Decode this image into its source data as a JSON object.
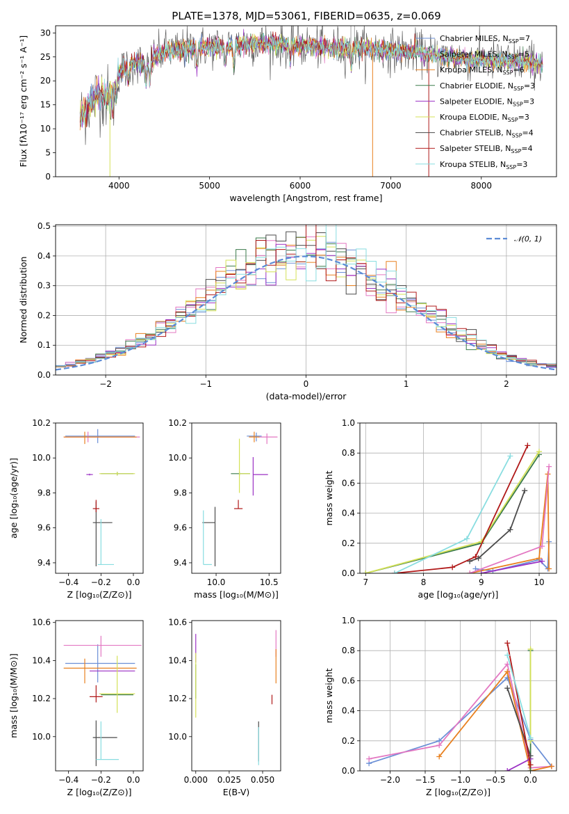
{
  "title": "PLATE=1378, MJD=53061, FIBERID=0635, z=0.069",
  "colors": {
    "Chabrier MILES": "#6b8fd6",
    "Salpeter MILES": "#e377c2",
    "Kroupa MILES": "#e8801f",
    "Chabrier ELODIE": "#3a7a4a",
    "Salpeter ELODIE": "#9b30c4",
    "Kroupa ELODIE": "#d4e157",
    "Chabrier STELIB": "#4a4a4a",
    "Salpeter STELIB": "#b01818",
    "Kroupa STELIB": "#88dde0"
  },
  "chart_data": [
    {
      "id": "spectrum",
      "type": "line",
      "xlabel": "wavelength [Angstrom, rest frame]",
      "ylabel": "Flux [fλ10⁻¹⁷ erg cm⁻² s⁻¹ A⁻¹]",
      "xlim": [
        3300,
        8830
      ],
      "ylim": [
        0,
        31.5
      ],
      "xticks": [
        4000,
        5000,
        6000,
        7000,
        8000
      ],
      "yticks": [
        0,
        5,
        10,
        15,
        20,
        25,
        30
      ],
      "grid": false,
      "legend_position": "top-right",
      "legend": [
        "Chabrier MILES, N_SSP=7",
        "Salpeter MILES, N_SSP=5",
        "Kroupa MILES, N_SSP=6",
        "Chabrier ELODIE, N_SSP=3",
        "Salpeter ELODIE, N_SSP=3",
        "Kroupa ELODIE, N_SSP=3",
        "Chabrier STELIB, N_SSP=4",
        "Salpeter STELIB, N_SSP=4",
        "Kroupa STELIB, N_SSP=3"
      ],
      "continuum": {
        "x": [
          3550,
          3600,
          3700,
          3800,
          3900,
          3950,
          4000,
          4100,
          4200,
          4300,
          4400,
          4500,
          4700,
          4900,
          5100,
          5300,
          5500,
          5700,
          5900,
          6100,
          6300,
          6500,
          6700,
          6900,
          7100,
          7300,
          7500,
          7700,
          7900,
          8100,
          8300,
          8500,
          8700,
          8830
        ],
        "y": [
          12,
          13,
          16,
          17.5,
          16,
          19,
          22,
          23,
          24,
          23,
          25,
          26,
          26.5,
          27,
          27.2,
          27.5,
          27.8,
          27.8,
          27.5,
          27.2,
          27,
          26.8,
          26.8,
          26.5,
          26.2,
          26,
          25.2,
          24.8,
          24.5,
          24.2,
          24,
          24,
          23.5,
          23
        ]
      }
    },
    {
      "id": "residuals",
      "type": "line",
      "xlabel": "(data-model)/error",
      "ylabel": "Normed distribution",
      "xlim": [
        -2.5,
        2.5
      ],
      "ylim": [
        0,
        0.505
      ],
      "xticks": [
        -2,
        -1,
        0,
        1,
        2
      ],
      "yticks": [
        0.0,
        0.1,
        0.2,
        0.3,
        0.4,
        0.5
      ],
      "grid": true,
      "legend_position": "top-right",
      "legend": [
        "𝒩(0, 1)"
      ],
      "gaussian": {
        "mean": 0,
        "sigma": 1
      }
    },
    {
      "id": "age-vs-Z",
      "type": "scatter",
      "xlabel": "Z [log₁₀(Z/Z⊙)]",
      "ylabel": "age  [log₁₀(age/yr)]",
      "xlim": [
        -0.48,
        0.06
      ],
      "ylim": [
        9.34,
        10.2
      ],
      "xticks": [
        -0.4,
        -0.2,
        0.0
      ],
      "yticks": [
        9.4,
        9.6,
        9.8,
        10.0,
        10.2
      ],
      "points": [
        {
          "model": "Chabrier MILES",
          "x": -0.22,
          "y": 10.125,
          "xerr": [
            0.2,
            0.23
          ],
          "yerr": [
            0.04,
            0.04
          ]
        },
        {
          "model": "Salpeter MILES",
          "x": -0.28,
          "y": 10.12,
          "xerr": [
            0.15,
            0.32
          ],
          "yerr": [
            0.03,
            0.03
          ]
        },
        {
          "model": "Kroupa MILES",
          "x": -0.3,
          "y": 10.12,
          "xerr": [
            0.13,
            0.32
          ],
          "yerr": [
            0.04,
            0.03
          ]
        },
        {
          "model": "Chabrier ELODIE",
          "x": -0.1,
          "y": 9.91,
          "xerr": [
            0.1,
            0.1
          ],
          "yerr": [
            0.01,
            0.01
          ]
        },
        {
          "model": "Salpeter ELODIE",
          "x": -0.27,
          "y": 9.905,
          "xerr": [
            0.02,
            0.02
          ],
          "yerr": [
            0.005,
            0.005
          ]
        },
        {
          "model": "Kroupa ELODIE",
          "x": -0.1,
          "y": 9.91,
          "xerr": [
            0.11,
            0.11
          ],
          "yerr": [
            0.01,
            0.01
          ]
        },
        {
          "model": "Chabrier STELIB",
          "x": -0.23,
          "y": 9.63,
          "xerr": [
            0.02,
            0.1
          ],
          "yerr": [
            0.25,
            0.12
          ]
        },
        {
          "model": "Salpeter STELIB",
          "x": -0.23,
          "y": 9.71,
          "xerr": [
            0.02,
            0.02
          ],
          "yerr": [
            0.02,
            0.05
          ]
        },
        {
          "model": "Kroupa STELIB",
          "x": -0.2,
          "y": 9.39,
          "xerr": [
            0.02,
            0.08
          ],
          "yerr": [
            0.0,
            0.26
          ]
        }
      ]
    },
    {
      "id": "age-vs-mass",
      "type": "scatter",
      "xlabel": "mass [log₁₀(M/M⊙)]",
      "ylabel": "",
      "xlim": [
        9.77,
        10.61
      ],
      "ylim": [
        9.34,
        10.2
      ],
      "xticks": [
        10.0,
        10.5
      ],
      "yticks": [
        9.4,
        9.6,
        9.8,
        10.0,
        10.2
      ],
      "points": [
        {
          "model": "Chabrier MILES",
          "x": 10.38,
          "y": 10.125,
          "xerr": [
            0.09,
            0.05
          ],
          "yerr": [
            0.03,
            0.02
          ]
        },
        {
          "model": "Salpeter MILES",
          "x": 10.48,
          "y": 10.12,
          "xerr": [
            0.08,
            0.1
          ],
          "yerr": [
            0.04,
            0.02
          ]
        },
        {
          "model": "Kroupa MILES",
          "x": 10.36,
          "y": 10.12,
          "xerr": [
            0.05,
            0.05
          ],
          "yerr": [
            0.03,
            0.03
          ]
        },
        {
          "model": "Chabrier ELODIE",
          "x": 10.22,
          "y": 9.91,
          "xerr": [
            0.08,
            0.1
          ],
          "yerr": [
            0.01,
            0.01
          ]
        },
        {
          "model": "Salpeter ELODIE",
          "x": 10.35,
          "y": 9.905,
          "xerr": [
            0.0,
            0.14
          ],
          "yerr": [
            0.12,
            0.1
          ]
        },
        {
          "model": "Kroupa ELODIE",
          "x": 10.22,
          "y": 9.91,
          "xerr": [
            0.0,
            0.1
          ],
          "yerr": [
            0.11,
            0.2
          ]
        },
        {
          "model": "Chabrier STELIB",
          "x": 9.99,
          "y": 9.63,
          "xerr": [
            0.12,
            0.0
          ],
          "yerr": [
            0.25,
            0.09
          ]
        },
        {
          "model": "Salpeter STELIB",
          "x": 10.21,
          "y": 9.71,
          "xerr": [
            0.04,
            0.04
          ],
          "yerr": [
            0.0,
            0.05
          ]
        },
        {
          "model": "Kroupa STELIB",
          "x": 9.88,
          "y": 9.39,
          "xerr": [
            0.0,
            0.08
          ],
          "yerr": [
            0.0,
            0.31
          ]
        }
      ]
    },
    {
      "id": "weight-vs-age",
      "type": "line",
      "xlabel": "age  [log₁₀(age/yr)]",
      "ylabel": "mass weight",
      "xlim": [
        6.9,
        10.3
      ],
      "ylim": [
        0.0,
        1.0
      ],
      "xticks": [
        7,
        8,
        9,
        10
      ],
      "yticks": [
        0.0,
        0.2,
        0.4,
        0.6,
        0.8,
        1.0
      ],
      "grid": true,
      "series": [
        {
          "model": "Chabrier MILES",
          "x": [
            8.9,
            9.2,
            10.0,
            10.15,
            10.17
          ],
          "y": [
            0.03,
            0.015,
            0.09,
            0.03,
            0.21
          ]
        },
        {
          "model": "Kroupa MILES",
          "x": [
            8.8,
            10.0,
            10.15,
            10.17
          ],
          "y": [
            0.0,
            0.1,
            0.66,
            0.03
          ]
        },
        {
          "model": "Salpeter MILES",
          "x": [
            8.8,
            10.05,
            10.17
          ],
          "y": [
            0.0,
            0.18,
            0.71
          ]
        },
        {
          "model": "Chabrier ELODIE",
          "x": [
            7.0,
            9.0,
            10.0
          ],
          "y": [
            0.0,
            0.2,
            0.79
          ]
        },
        {
          "model": "Kroupa ELODIE",
          "x": [
            7.0,
            9.0,
            10.0
          ],
          "y": [
            0.0,
            0.21,
            0.81
          ]
        },
        {
          "model": "Salpeter ELODIE",
          "x": [
            9.0,
            10.05
          ],
          "y": [
            0.0,
            0.08
          ]
        },
        {
          "model": "Chabrier STELIB",
          "x": [
            8.8,
            8.95,
            9.5,
            9.75
          ],
          "y": [
            0.08,
            0.1,
            0.29,
            0.55
          ]
        },
        {
          "model": "Salpeter STELIB",
          "x": [
            7.5,
            8.5,
            8.9,
            9.8
          ],
          "y": [
            0.0,
            0.04,
            0.11,
            0.85
          ]
        },
        {
          "model": "Kroupa STELIB",
          "x": [
            7.5,
            8.75,
            9.5
          ],
          "y": [
            0.0,
            0.23,
            0.78
          ]
        }
      ]
    },
    {
      "id": "mass-vs-Z",
      "type": "scatter",
      "xlabel": "Z [log₁₀(Z/Z⊙)]",
      "ylabel": "mass [log₁₀(M/M⊙)]",
      "xlim": [
        -0.48,
        0.06
      ],
      "ylim": [
        9.82,
        10.61
      ],
      "xticks": [
        -0.4,
        -0.2,
        0.0
      ],
      "yticks": [
        10.0,
        10.2,
        10.4,
        10.6
      ],
      "points": [
        {
          "model": "Chabrier MILES",
          "x": -0.22,
          "y": 10.385,
          "xerr": [
            0.2,
            0.23
          ],
          "yerr": [
            0.1,
            0.1
          ]
        },
        {
          "model": "Salpeter MILES",
          "x": -0.2,
          "y": 10.48,
          "xerr": [
            0.23,
            0.25
          ],
          "yerr": [
            0.06,
            0.05
          ]
        },
        {
          "model": "Kroupa MILES",
          "x": -0.3,
          "y": 10.36,
          "xerr": [
            0.13,
            0.32
          ],
          "yerr": [
            0.08,
            0.05
          ]
        },
        {
          "model": "Chabrier ELODIE",
          "x": -0.1,
          "y": 10.22,
          "xerr": [
            0.1,
            0.1
          ],
          "yerr": [
            0.0,
            0.0
          ]
        },
        {
          "model": "Salpeter ELODIE",
          "x": -0.13,
          "y": 10.345,
          "xerr": [
            0.14,
            0.14
          ],
          "yerr": [
            0.0,
            0.0
          ]
        },
        {
          "model": "Kroupa ELODIE",
          "x": -0.1,
          "y": 10.225,
          "xerr": [
            0.11,
            0.11
          ],
          "yerr": [
            0.1,
            0.2
          ]
        },
        {
          "model": "Chabrier STELIB",
          "x": -0.23,
          "y": 9.995,
          "xerr": [
            0.02,
            0.13
          ],
          "yerr": [
            0.15,
            0.09
          ]
        },
        {
          "model": "Salpeter STELIB",
          "x": -0.23,
          "y": 10.21,
          "xerr": [
            0.04,
            0.04
          ],
          "yerr": [
            0.03,
            0.06
          ]
        },
        {
          "model": "Kroupa STELIB",
          "x": -0.2,
          "y": 9.88,
          "xerr": [
            0.03,
            0.11
          ],
          "yerr": [
            0.0,
            0.2
          ]
        }
      ]
    },
    {
      "id": "mass-vs-EBV",
      "type": "scatter",
      "xlabel": "E(B-V)",
      "ylabel": "",
      "xlim": [
        -0.003,
        0.0635
      ],
      "ylim": [
        9.82,
        10.61
      ],
      "xticks": [
        0.0,
        0.025,
        0.05
      ],
      "yticks": [
        10.0,
        10.2,
        10.4,
        10.6
      ],
      "points": [
        {
          "model": "Chabrier ELODIE",
          "x": 0.0,
          "y": 10.3,
          "xerr": [
            0,
            0
          ],
          "yerr": [
            0.1,
            0.08
          ]
        },
        {
          "model": "Salpeter ELODIE",
          "x": 0.0,
          "y": 10.45,
          "xerr": [
            0,
            0
          ],
          "yerr": [
            0.06,
            0.09
          ]
        },
        {
          "model": "Kroupa ELODIE",
          "x": 0.0,
          "y": 10.3,
          "xerr": [
            0,
            0
          ],
          "yerr": [
            0.2,
            0.14
          ]
        },
        {
          "model": "Chabrier STELIB",
          "x": 0.047,
          "y": 9.97,
          "xerr": [
            0,
            0
          ],
          "yerr": [
            0.1,
            0.11
          ]
        },
        {
          "model": "Kroupa STELIB",
          "x": 0.047,
          "y": 9.97,
          "xerr": [
            0,
            0
          ],
          "yerr": [
            0.12,
            0.08
          ]
        },
        {
          "model": "Salpeter STELIB",
          "x": 0.057,
          "y": 10.2,
          "xerr": [
            0,
            0
          ],
          "yerr": [
            0.03,
            0.02
          ]
        },
        {
          "model": "Salpeter MILES",
          "x": 0.06,
          "y": 10.48,
          "xerr": [
            0,
            0
          ],
          "yerr": [
            0.06,
            0.08
          ]
        },
        {
          "model": "Kroupa MILES",
          "x": 0.06,
          "y": 10.38,
          "xerr": [
            0,
            0
          ],
          "yerr": [
            0.1,
            0.08
          ]
        }
      ]
    },
    {
      "id": "weight-vs-Z",
      "type": "line",
      "xlabel": "Z [log₁₀(Z/Z⊙)]",
      "ylabel": "mass weight",
      "xlim": [
        -2.43,
        0.37
      ],
      "ylim": [
        0.0,
        1.0
      ],
      "xticks": [
        -2.0,
        -1.5,
        -1.0,
        -0.5,
        0.0
      ],
      "yticks": [
        0.0,
        0.2,
        0.4,
        0.6,
        0.8,
        1.0
      ],
      "grid": true,
      "series": [
        {
          "model": "Chabrier MILES",
          "x": [
            -2.3,
            -1.3,
            -0.33,
            0.0,
            0.3
          ],
          "y": [
            0.05,
            0.2,
            0.62,
            0.21,
            0.03
          ]
        },
        {
          "model": "Salpeter MILES",
          "x": [
            -2.3,
            -1.3,
            -0.33,
            0.0,
            0.3
          ],
          "y": [
            0.08,
            0.17,
            0.71,
            0.02,
            0.03
          ]
        },
        {
          "model": "Kroupa MILES",
          "x": [
            -1.3,
            -0.33,
            0.0,
            0.3
          ],
          "y": [
            0.095,
            0.66,
            0.0,
            0.03
          ]
        },
        {
          "model": "Chabrier ELODIE",
          "x": [
            0.0,
            0.0
          ],
          "y": [
            0.0,
            0.8
          ]
        },
        {
          "model": "Kroupa ELODIE",
          "x": [
            0.0,
            0.0
          ],
          "y": [
            0.2,
            0.81
          ]
        },
        {
          "model": "Salpeter ELODIE",
          "x": [
            -0.33,
            0.0
          ],
          "y": [
            0.0,
            0.08
          ]
        },
        {
          "model": "Chabrier STELIB",
          "x": [
            -0.33,
            0.0
          ],
          "y": [
            0.55,
            0.1
          ]
        },
        {
          "model": "Salpeter STELIB",
          "x": [
            -0.33,
            0.0
          ],
          "y": [
            0.85,
            0.04
          ]
        },
        {
          "model": "Kroupa STELIB",
          "x": [
            -0.33,
            0.0
          ],
          "y": [
            0.77,
            0.22
          ]
        }
      ]
    }
  ]
}
